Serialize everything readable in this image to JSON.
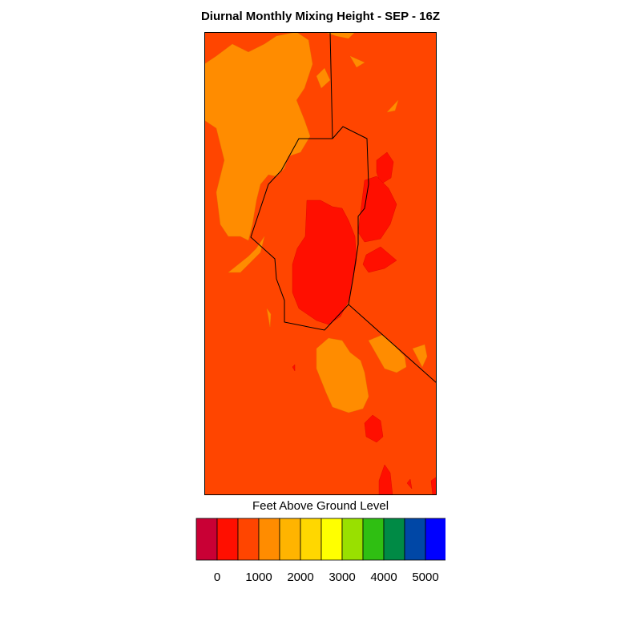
{
  "title": "Diurnal Monthly Mixing Height - SEP - 16Z",
  "colors": {
    "base": "#ff4500",
    "low": "#ff0f00",
    "mid": "#ff8c00",
    "boundary": "#000000"
  },
  "colorbar": {
    "title": "Feet Above Ground Level",
    "swatches": [
      "#c90035",
      "#ff0f00",
      "#ff4500",
      "#ff8c00",
      "#ffb400",
      "#ffd700",
      "#ffff00",
      "#99e000",
      "#2fbf12",
      "#008a45",
      "#0047a6",
      "#0000ff"
    ],
    "ticks": [
      {
        "value": 0,
        "label": "0"
      },
      {
        "value": 1000,
        "label": "1000"
      },
      {
        "value": 2000,
        "label": "2000"
      },
      {
        "value": 3000,
        "label": "3000"
      },
      {
        "value": 4000,
        "label": "4000"
      },
      {
        "value": 5000,
        "label": "5000"
      }
    ]
  }
}
